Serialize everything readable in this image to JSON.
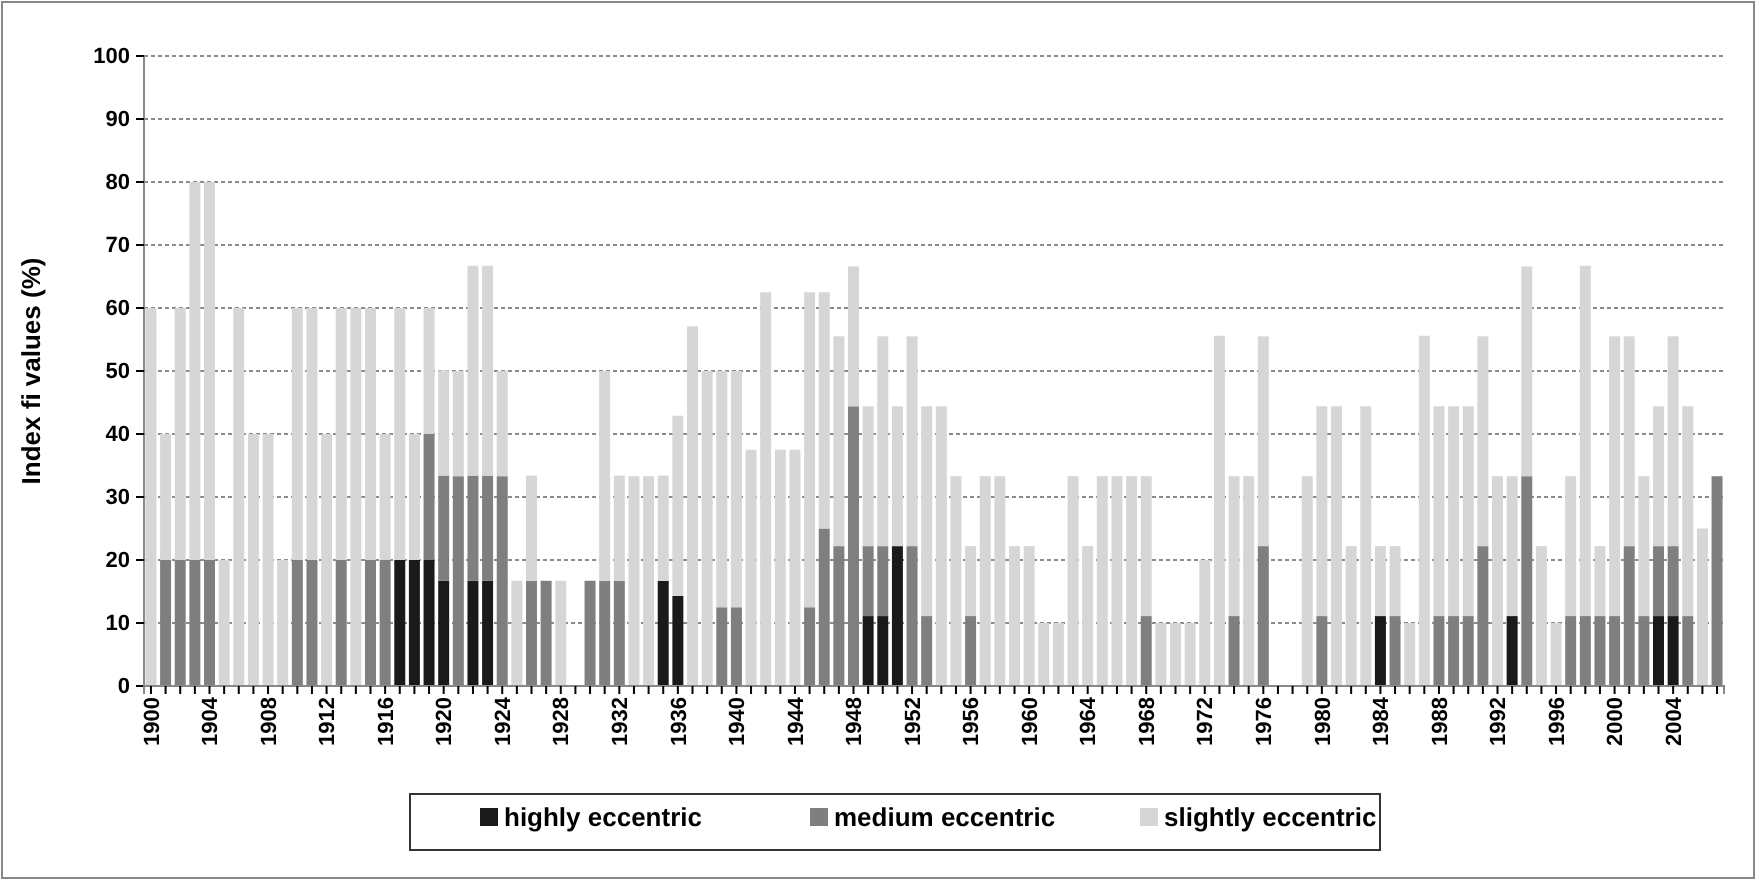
{
  "chart_data": {
    "type": "bar",
    "stacked": true,
    "ylabel": "Index fi values  (%)",
    "ylim": [
      0,
      100
    ],
    "yticks": [
      0,
      10,
      20,
      30,
      40,
      50,
      60,
      70,
      80,
      90,
      100
    ],
    "grid": "y",
    "legend": "bottom",
    "categories": [
      "1900",
      null,
      null,
      null,
      "1904",
      null,
      null,
      null,
      "1908",
      null,
      null,
      null,
      "1912",
      null,
      null,
      null,
      "1916",
      null,
      null,
      null,
      "1920",
      null,
      null,
      null,
      "1924",
      null,
      null,
      null,
      "1928",
      null,
      null,
      null,
      "1932",
      null,
      null,
      null,
      "1936",
      null,
      null,
      null,
      "1940",
      null,
      null,
      null,
      "1944",
      null,
      null,
      null,
      "1948",
      null,
      null,
      null,
      "1952",
      null,
      null,
      null,
      "1956",
      null,
      null,
      null,
      "1960",
      null,
      null,
      null,
      "1964",
      null,
      null,
      null,
      "1968",
      null,
      null,
      null,
      "1972",
      null,
      null,
      null,
      "1976",
      null,
      null,
      null,
      "1980",
      null,
      null,
      null,
      "1984",
      null,
      null,
      null,
      "1988",
      null,
      null,
      null,
      "1992",
      null,
      null,
      null,
      "1996",
      null,
      null,
      null,
      "2000",
      null,
      null,
      null,
      "2004",
      null,
      null,
      null
    ],
    "series": [
      {
        "name": "highly eccentric",
        "color": "#1a1a1a",
        "values": [
          0,
          0,
          0,
          0,
          0,
          0,
          0,
          0,
          0,
          0,
          0,
          0,
          0,
          0,
          0,
          0,
          0,
          20,
          20,
          20,
          16.7,
          0,
          16.7,
          16.7,
          0,
          0,
          0,
          0,
          0,
          0,
          0,
          0,
          0,
          0,
          0,
          16.7,
          14.3,
          0,
          0,
          0,
          0,
          0,
          0,
          0,
          0,
          0,
          0,
          0,
          0,
          11.1,
          11.1,
          22.2,
          0,
          0,
          0,
          0,
          0,
          0,
          0,
          0,
          0,
          0,
          0,
          0,
          0,
          0,
          0,
          0,
          0,
          0,
          0,
          0,
          0,
          0,
          0,
          0,
          0,
          0,
          0,
          0,
          0,
          0,
          0,
          0,
          11.1,
          0,
          0,
          0,
          0,
          0,
          0,
          0,
          0,
          11.1,
          0,
          0,
          0,
          0,
          0,
          0,
          0,
          0,
          0,
          11.1,
          11.1,
          0,
          0,
          0
        ]
      },
      {
        "name": "medium eccentric",
        "color": "#7f7f7f",
        "values": [
          0,
          20,
          20,
          20,
          20,
          0,
          0,
          0,
          0,
          0,
          20,
          20,
          0,
          20,
          0,
          20,
          20,
          0,
          0,
          20,
          16.7,
          33.3,
          16.7,
          16.7,
          33.3,
          0,
          16.7,
          16.7,
          0,
          0,
          16.7,
          16.7,
          16.7,
          0,
          0,
          0,
          0,
          0,
          0,
          12.5,
          12.5,
          0,
          0,
          0,
          0,
          12.5,
          25,
          22.2,
          44.4,
          11.1,
          11.1,
          0,
          22.2,
          11.1,
          0,
          0,
          11.1,
          0,
          0,
          0,
          0,
          0,
          0,
          0,
          0,
          0,
          0,
          0,
          11.1,
          0,
          0,
          0,
          0,
          0,
          11.1,
          0,
          22.2,
          0,
          0,
          0,
          11.1,
          0,
          0,
          0,
          0,
          11.1,
          0,
          0,
          11.1,
          11.1,
          11.1,
          22.2,
          0,
          0,
          33.3,
          0,
          0,
          11.1,
          11.1,
          11.1,
          11.1,
          22.2,
          11.1,
          11.1,
          11.1,
          11.1,
          0,
          33.3
        ]
      },
      {
        "name": "slightly eccentric",
        "color": "#d6d6d6",
        "values": [
          60,
          20,
          40,
          60,
          60,
          20,
          60,
          40,
          40,
          20,
          40,
          40,
          40,
          40,
          60,
          40,
          20,
          40,
          20,
          20,
          16.7,
          16.7,
          33.3,
          33.3,
          16.7,
          16.7,
          16.7,
          0,
          16.7,
          0,
          0,
          33.3,
          16.7,
          33.3,
          33.3,
          16.7,
          28.6,
          57.1,
          50,
          37.5,
          37.5,
          37.5,
          62.5,
          37.5,
          37.5,
          50,
          37.5,
          33.3,
          22.2,
          22.2,
          33.3,
          22.2,
          33.3,
          33.3,
          44.4,
          33.3,
          11.1,
          33.3,
          33.3,
          22.2,
          22.2,
          10,
          10,
          33.3,
          22.2,
          33.3,
          33.3,
          33.3,
          22.2,
          10,
          10,
          10,
          20,
          55.6,
          22.2,
          33.3,
          33.3,
          0,
          0,
          33.3,
          33.3,
          44.4,
          22.2,
          44.4,
          11.1,
          11.1,
          10,
          55.6,
          33.3,
          33.3,
          33.3,
          33.3,
          33.3,
          22.2,
          33.3,
          22.2,
          10,
          22.2,
          55.6,
          11.1,
          44.4,
          33.3,
          22.2,
          22.2,
          33.3,
          33.3,
          25,
          0
        ]
      }
    ]
  }
}
